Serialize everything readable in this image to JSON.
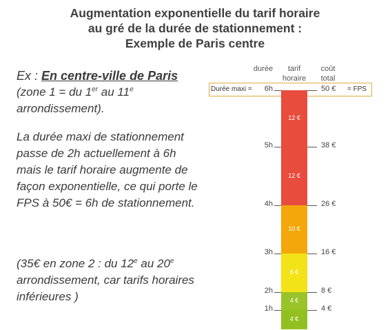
{
  "title": {
    "line1": "Augmentation exponentielle du tarif horaire",
    "line2": "au gré de la durée de stationnement :",
    "line3": "Exemple de Paris centre"
  },
  "left": {
    "ex_prefix": "Ex :  ",
    "ex_bold": "En centre-ville de Paris",
    "zone_a": "(zone 1 = du 1",
    "zone_sup1": "er",
    "zone_b": " au 11",
    "zone_sup2": "e",
    "zone_c": " arrondissement).",
    "para2": "La durée maxi de stationnement passe de 2h actuellement à 6h mais le tarif horaire augmente de façon exponentielle, ce qui porte le FPS à 50€ = 6h de stationnement.",
    "para3_a": "(35€ en zone 2 : du 12",
    "para3_sup1": "e",
    "para3_b": " au 20",
    "para3_sup2": "e",
    "para3_c": " arrondissement, car tarifs horaires inférieures )"
  },
  "diagram": {
    "headers": {
      "duree": "durée",
      "tarif": "tarif horaire",
      "cout": "coût total"
    },
    "max_label": "Durée maxi  =",
    "fps_label": "= FPS",
    "hours": [
      {
        "label": "1h",
        "value": 1
      },
      {
        "label": "2h",
        "value": 2
      },
      {
        "label": "3h",
        "value": 3
      },
      {
        "label": "4h",
        "value": 4
      },
      {
        "label": "5h",
        "value": 5
      },
      {
        "label": "6h",
        "value": 6
      }
    ],
    "costs": [
      {
        "label": "4 €",
        "hour": 1
      },
      {
        "label": "8 €",
        "hour": 2
      },
      {
        "label": "16 €",
        "hour": 3
      },
      {
        "label": "26 €",
        "hour": 4
      },
      {
        "label": "38 €",
        "hour": 5
      },
      {
        "label": "50 €",
        "hour": 6
      }
    ],
    "segments": [
      {
        "from": 0,
        "to": 1,
        "rate": "4 €",
        "color": "#92c020"
      },
      {
        "from": 1,
        "to": 2,
        "rate": "4 €",
        "color": "#9ac32a"
      },
      {
        "from": 2,
        "to": 3,
        "rate": "8 €",
        "color": "#f2e318"
      },
      {
        "from": 3,
        "to": 4,
        "rate": "10 €",
        "color": "#f4a70a"
      },
      {
        "from": 4,
        "to": 5,
        "rate": "12 €",
        "color": "#e84c3d"
      },
      {
        "from": 5,
        "to": 6,
        "rate": "12 €",
        "color": "#e84c3d"
      }
    ],
    "colors": {
      "box_border": "#e2a93a",
      "rate_text": "#ffffff"
    }
  }
}
